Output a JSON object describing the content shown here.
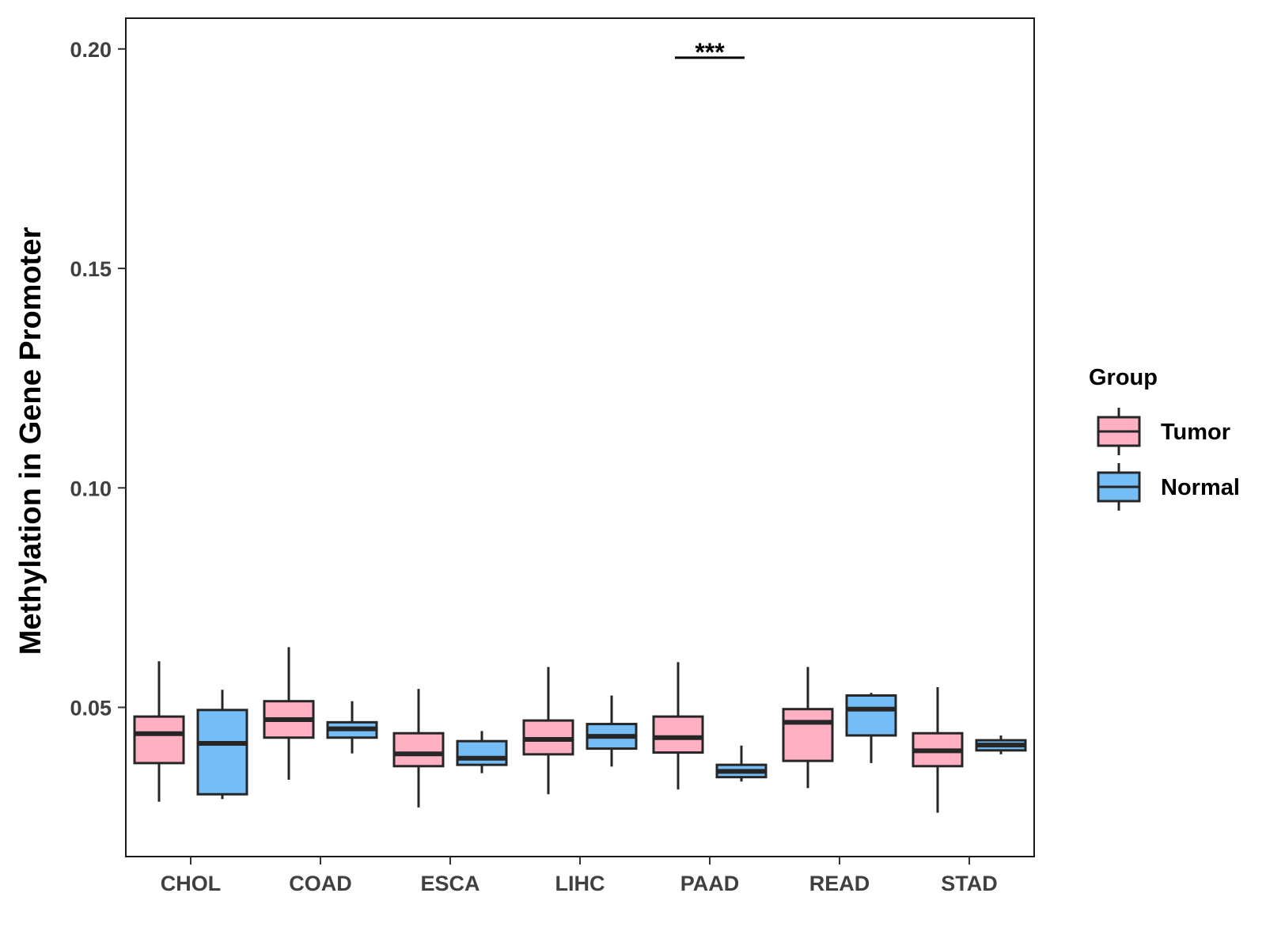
{
  "chart_data": {
    "type": "boxplot",
    "title": "",
    "xlabel": "",
    "ylabel": "Methylation in Gene Promoter",
    "ylim": [
      0.016,
      0.207
    ],
    "yticks": [
      0.05,
      0.1,
      0.15,
      0.2
    ],
    "ytick_labels": [
      "0.05",
      "0.10",
      "0.15",
      "0.20"
    ],
    "categories": [
      "CHOL",
      "COAD",
      "ESCA",
      "LIHC",
      "PAAD",
      "READ",
      "STAD"
    ],
    "legend": {
      "title": "Group",
      "position": "right",
      "entries": [
        {
          "name": "Tumor",
          "color": "#FFB0C2"
        },
        {
          "name": "Normal",
          "color": "#74BDF7"
        }
      ]
    },
    "series": [
      {
        "name": "Tumor",
        "color": "#FFB0C2",
        "boxes": [
          {
            "category": "CHOL",
            "min": 0.0285,
            "q1": 0.0373,
            "median": 0.044,
            "q3": 0.0479,
            "max": 0.0605
          },
          {
            "category": "COAD",
            "min": 0.0335,
            "q1": 0.0431,
            "median": 0.0472,
            "q3": 0.0514,
            "max": 0.0637
          },
          {
            "category": "ESCA",
            "min": 0.0272,
            "q1": 0.0366,
            "median": 0.0394,
            "q3": 0.0441,
            "max": 0.0542
          },
          {
            "category": "LIHC",
            "min": 0.0302,
            "q1": 0.0393,
            "median": 0.0427,
            "q3": 0.047,
            "max": 0.0592
          },
          {
            "category": "PAAD",
            "min": 0.0313,
            "q1": 0.0397,
            "median": 0.0431,
            "q3": 0.0479,
            "max": 0.0603
          },
          {
            "category": "READ",
            "min": 0.0316,
            "q1": 0.0378,
            "median": 0.0466,
            "q3": 0.0496,
            "max": 0.0592
          },
          {
            "category": "STAD",
            "min": 0.026,
            "q1": 0.0366,
            "median": 0.0401,
            "q3": 0.0441,
            "max": 0.0546
          }
        ]
      },
      {
        "name": "Normal",
        "color": "#74BDF7",
        "boxes": [
          {
            "category": "CHOL",
            "min": 0.0291,
            "q1": 0.0302,
            "median": 0.0418,
            "q3": 0.0494,
            "max": 0.054
          },
          {
            "category": "COAD",
            "min": 0.0395,
            "q1": 0.0431,
            "median": 0.0451,
            "q3": 0.0466,
            "max": 0.0514
          },
          {
            "category": "ESCA",
            "min": 0.035,
            "q1": 0.0369,
            "median": 0.0384,
            "q3": 0.0423,
            "max": 0.0446
          },
          {
            "category": "LIHC",
            "min": 0.0365,
            "q1": 0.0406,
            "median": 0.0434,
            "q3": 0.0462,
            "max": 0.0527
          },
          {
            "category": "PAAD",
            "min": 0.0331,
            "q1": 0.0341,
            "median": 0.0354,
            "q3": 0.0369,
            "max": 0.0413
          },
          {
            "category": "READ",
            "min": 0.0373,
            "q1": 0.0436,
            "median": 0.0496,
            "q3": 0.0527,
            "max": 0.0533
          },
          {
            "category": "STAD",
            "min": 0.0393,
            "q1": 0.0402,
            "median": 0.0414,
            "q3": 0.0425,
            "max": 0.0436
          }
        ]
      }
    ],
    "annotations": [
      {
        "category": "PAAD",
        "text": "***",
        "y": 0.198
      }
    ]
  }
}
